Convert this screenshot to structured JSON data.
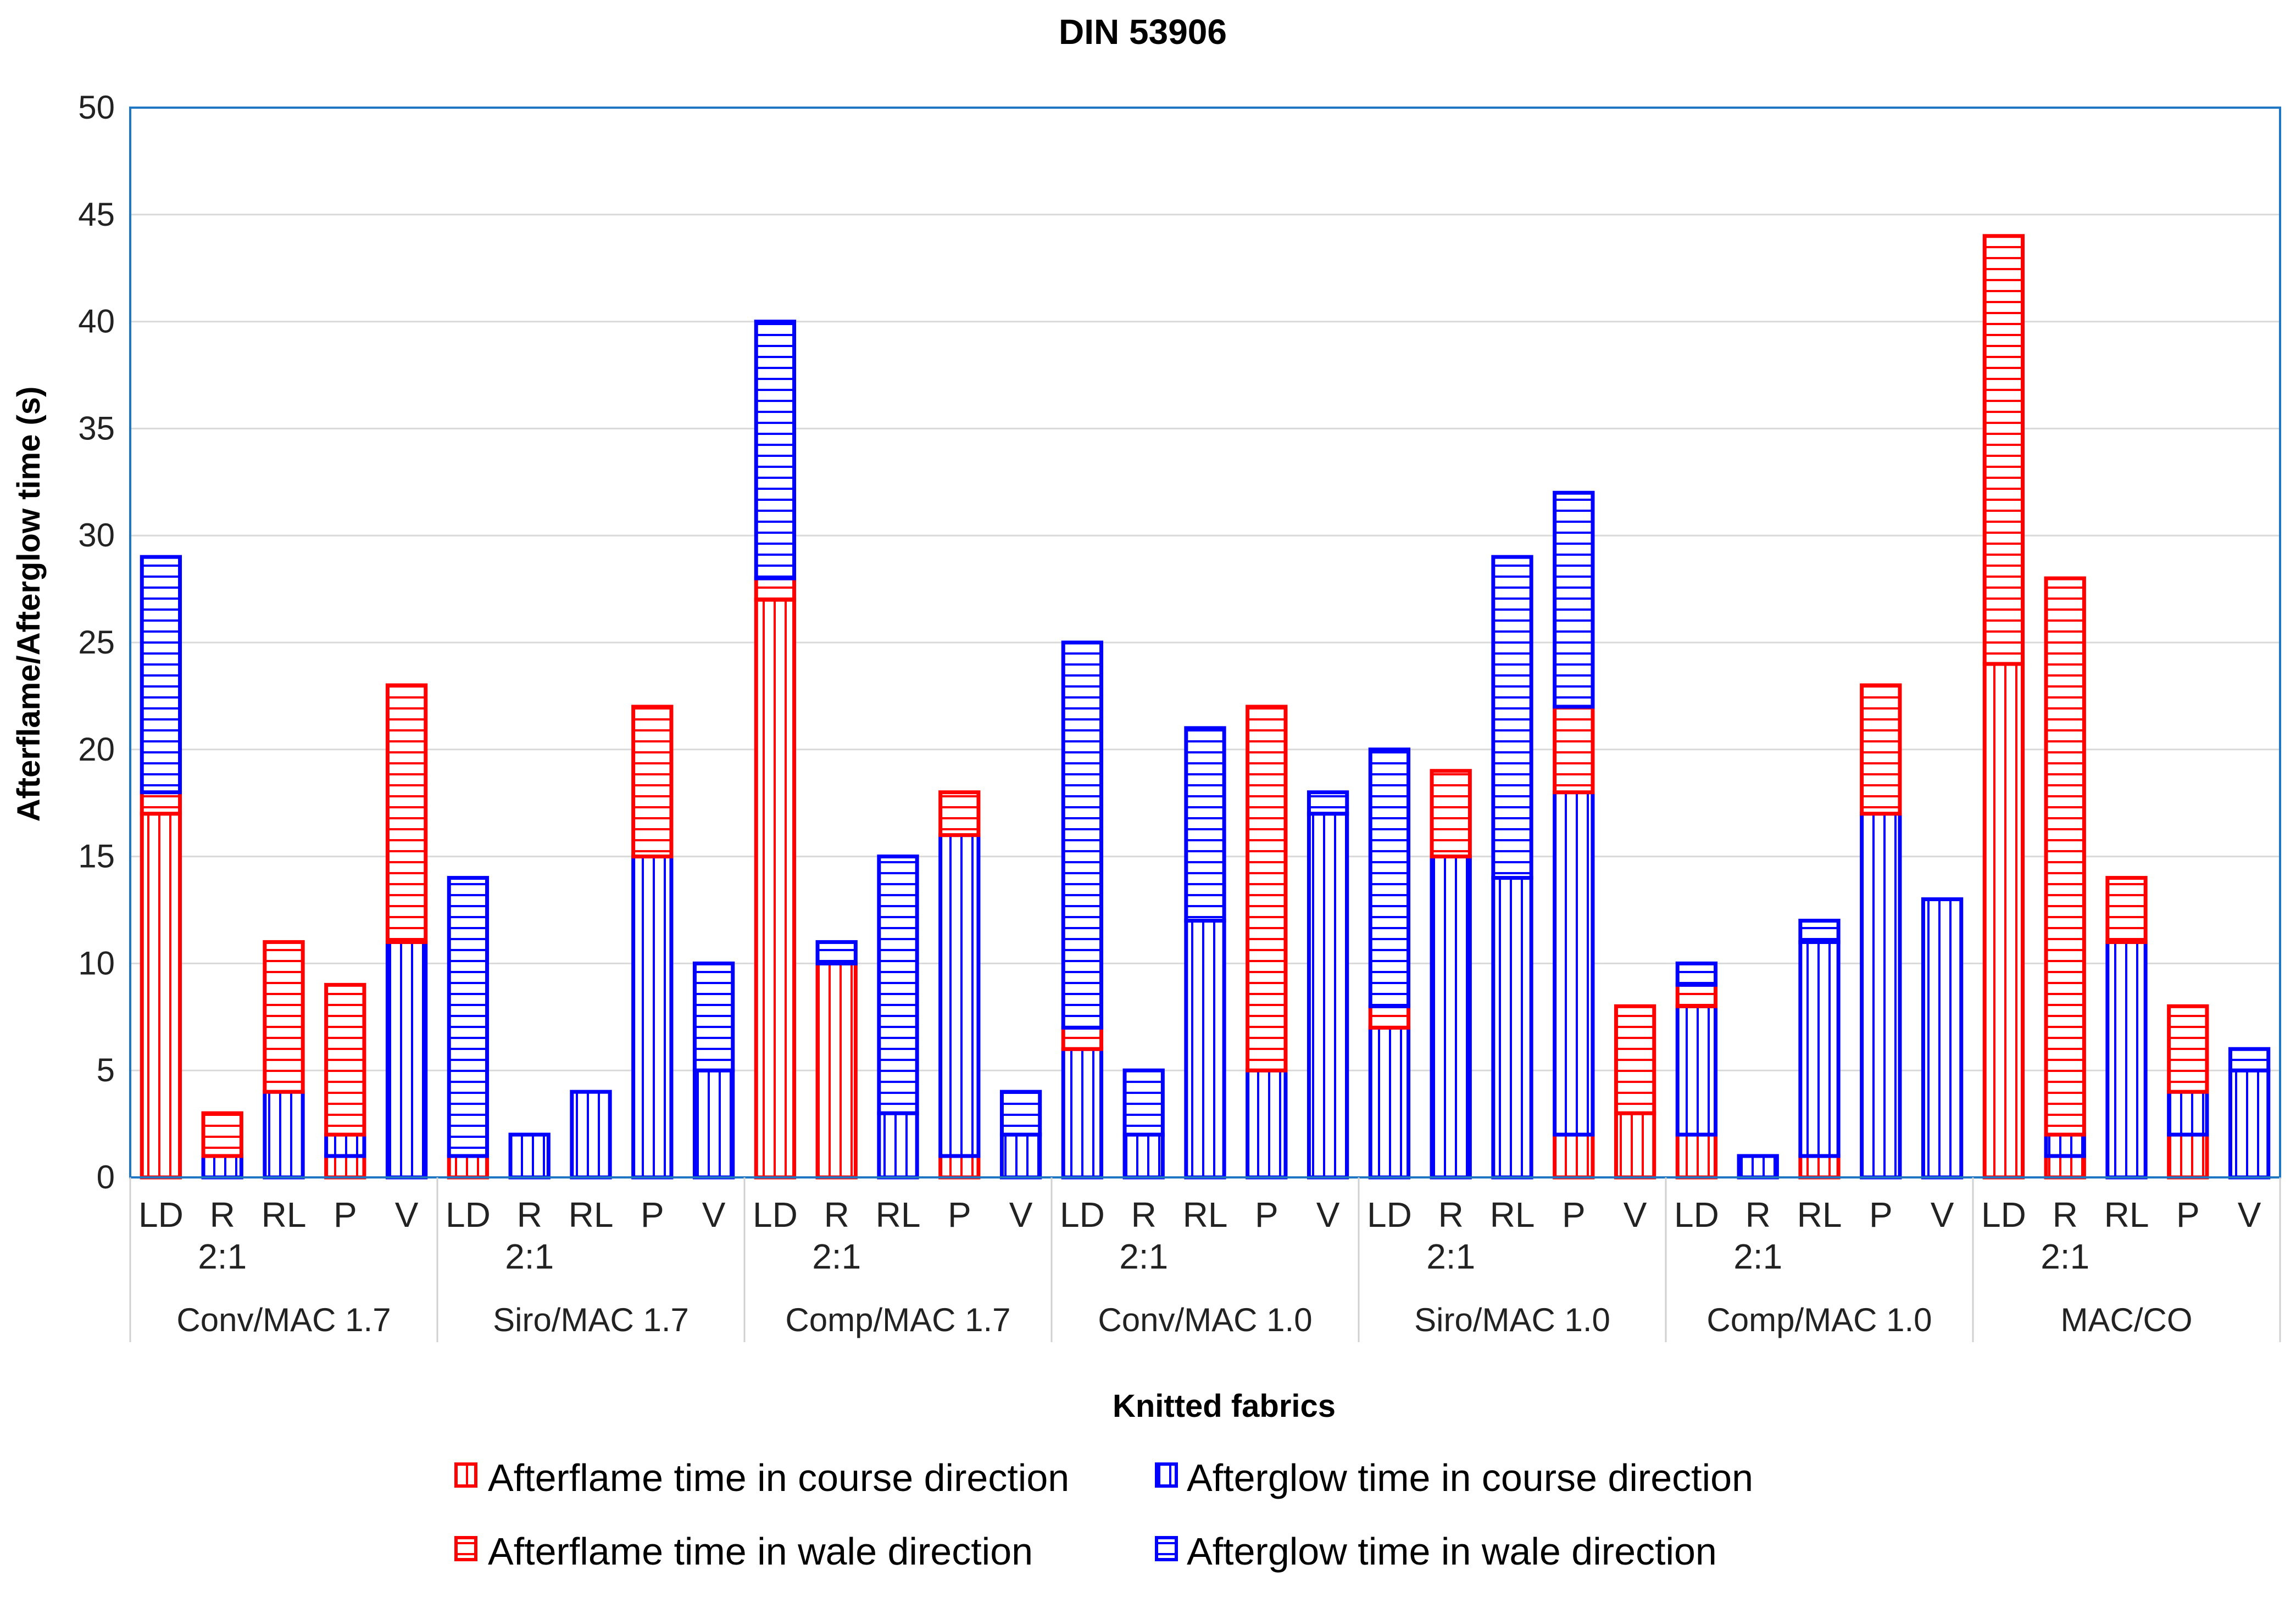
{
  "chart_data": {
    "type": "bar",
    "stacked": true,
    "title": "DIN 53906",
    "xlabel": "Knitted fabrics",
    "ylabel": "Afterflame/Afterglow time (s)",
    "ylim": [
      0,
      50
    ],
    "yticks": [
      0,
      5,
      10,
      15,
      20,
      25,
      30,
      35,
      40,
      45,
      50
    ],
    "grid": true,
    "legend_position": "bottom",
    "series": [
      {
        "name": "Afterflame time in course direction",
        "color": "#ff0000",
        "hatch": "vertical"
      },
      {
        "name": "Afterglow time in course direction",
        "color": "#0000ff",
        "hatch": "vertical"
      },
      {
        "name": "Afterflame time in wale direction",
        "color": "#ff0000",
        "hatch": "horizontal"
      },
      {
        "name": "Afterglow time in wale direction",
        "color": "#0000ff",
        "hatch": "horizontal"
      }
    ],
    "groups": [
      {
        "name": "Conv/MAC 1.7",
        "bars": [
          {
            "label": [
              "LD"
            ],
            "values": [
              17,
              0,
              1,
              11
            ]
          },
          {
            "label": [
              "R",
              "2:1"
            ],
            "values": [
              0,
              1,
              2,
              0
            ]
          },
          {
            "label": [
              "RL"
            ],
            "values": [
              0,
              4,
              7,
              0
            ]
          },
          {
            "label": [
              "P"
            ],
            "values": [
              1,
              1,
              7,
              0
            ]
          },
          {
            "label": [
              "V"
            ],
            "values": [
              0,
              11,
              12,
              0
            ]
          }
        ]
      },
      {
        "name": "Siro/MAC 1.7",
        "bars": [
          {
            "label": [
              "LD"
            ],
            "values": [
              1,
              0,
              0,
              13
            ]
          },
          {
            "label": [
              "R",
              "2:1"
            ],
            "values": [
              0,
              2,
              0,
              0
            ]
          },
          {
            "label": [
              "RL"
            ],
            "values": [
              0,
              4,
              0,
              0
            ]
          },
          {
            "label": [
              "P"
            ],
            "values": [
              0,
              15,
              7,
              0
            ]
          },
          {
            "label": [
              "V"
            ],
            "values": [
              0,
              5,
              0,
              5
            ]
          }
        ]
      },
      {
        "name": "Comp/MAC 1.7",
        "bars": [
          {
            "label": [
              "LD"
            ],
            "values": [
              27,
              0,
              1,
              12
            ]
          },
          {
            "label": [
              "R",
              "2:1"
            ],
            "values": [
              10,
              0,
              0,
              1
            ]
          },
          {
            "label": [
              "RL"
            ],
            "values": [
              0,
              3,
              0,
              12
            ]
          },
          {
            "label": [
              "P"
            ],
            "values": [
              1,
              15,
              2,
              0
            ]
          },
          {
            "label": [
              "V"
            ],
            "values": [
              0,
              2,
              0,
              2
            ]
          }
        ]
      },
      {
        "name": "Conv/MAC 1.0",
        "bars": [
          {
            "label": [
              "LD"
            ],
            "values": [
              0,
              6,
              1,
              18
            ]
          },
          {
            "label": [
              "R",
              "2:1"
            ],
            "values": [
              0,
              2,
              0,
              3
            ]
          },
          {
            "label": [
              "RL"
            ],
            "values": [
              0,
              12,
              0,
              9
            ]
          },
          {
            "label": [
              "P"
            ],
            "values": [
              0,
              5,
              17,
              0
            ]
          },
          {
            "label": [
              "V"
            ],
            "values": [
              0,
              17,
              0,
              1
            ]
          }
        ]
      },
      {
        "name": "Siro/MAC 1.0",
        "bars": [
          {
            "label": [
              "LD"
            ],
            "values": [
              0,
              7,
              1,
              12
            ]
          },
          {
            "label": [
              "R",
              "2:1"
            ],
            "values": [
              0,
              15,
              4,
              0
            ]
          },
          {
            "label": [
              "RL"
            ],
            "values": [
              0,
              14,
              0,
              15
            ]
          },
          {
            "label": [
              "P"
            ],
            "values": [
              2,
              16,
              4,
              10
            ]
          },
          {
            "label": [
              "V"
            ],
            "values": [
              3,
              0,
              5,
              0
            ]
          }
        ]
      },
      {
        "name": "Comp/MAC 1.0",
        "bars": [
          {
            "label": [
              "LD"
            ],
            "values": [
              2,
              6,
              1,
              1
            ]
          },
          {
            "label": [
              "R",
              "2:1"
            ],
            "values": [
              0,
              1,
              0,
              0
            ]
          },
          {
            "label": [
              "RL"
            ],
            "values": [
              1,
              10,
              0,
              1
            ]
          },
          {
            "label": [
              "P"
            ],
            "values": [
              0,
              17,
              6,
              0
            ]
          },
          {
            "label": [
              "V"
            ],
            "values": [
              0,
              13,
              0,
              0
            ]
          }
        ]
      },
      {
        "name": "MAC/CO",
        "bars": [
          {
            "label": [
              "LD"
            ],
            "values": [
              24,
              0,
              20,
              0
            ]
          },
          {
            "label": [
              "R",
              "2:1"
            ],
            "values": [
              1,
              1,
              26,
              0
            ]
          },
          {
            "label": [
              "RL"
            ],
            "values": [
              0,
              11,
              3,
              0
            ]
          },
          {
            "label": [
              "P"
            ],
            "values": [
              2,
              2,
              4,
              0
            ]
          },
          {
            "label": [
              "V"
            ],
            "values": [
              0,
              5,
              0,
              1
            ]
          }
        ]
      }
    ]
  }
}
